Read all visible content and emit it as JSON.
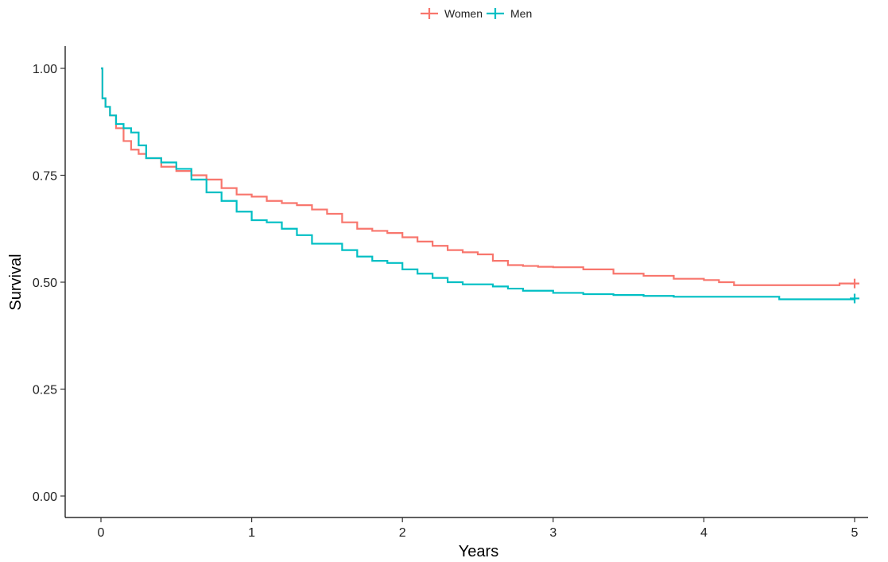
{
  "chart_data": {
    "type": "line",
    "title": "",
    "xlabel": "Years",
    "ylabel": "Survival",
    "xlim": [
      0,
      5
    ],
    "ylim": [
      0,
      1
    ],
    "x_ticks": [
      0,
      1,
      2,
      3,
      4,
      5
    ],
    "x_tick_labels": [
      "0",
      "1",
      "2",
      "3",
      "4",
      "5"
    ],
    "y_ticks": [
      0,
      0.25,
      0.5,
      0.75,
      1
    ],
    "y_tick_labels": [
      "0.00",
      "0.25",
      "0.50",
      "0.75",
      "1.00"
    ],
    "grid": false,
    "legend_position": "top-center",
    "line_shape": "step",
    "censor_marks": true,
    "series": [
      {
        "name": "Women",
        "color": "#F8766D",
        "x": [
          0,
          0.01,
          0.03,
          0.06,
          0.1,
          0.15,
          0.2,
          0.25,
          0.3,
          0.4,
          0.5,
          0.6,
          0.7,
          0.8,
          0.9,
          1.0,
          1.1,
          1.2,
          1.3,
          1.4,
          1.5,
          1.6,
          1.7,
          1.8,
          1.9,
          2.0,
          2.1,
          2.2,
          2.3,
          2.4,
          2.5,
          2.6,
          2.7,
          2.8,
          2.9,
          3.0,
          3.2,
          3.4,
          3.6,
          3.8,
          4.0,
          4.1,
          4.2,
          4.4,
          4.6,
          4.8,
          4.9,
          5.0
        ],
        "y": [
          1.0,
          0.93,
          0.91,
          0.89,
          0.86,
          0.83,
          0.81,
          0.8,
          0.79,
          0.77,
          0.76,
          0.75,
          0.74,
          0.72,
          0.705,
          0.7,
          0.69,
          0.685,
          0.68,
          0.67,
          0.66,
          0.64,
          0.625,
          0.62,
          0.615,
          0.605,
          0.595,
          0.585,
          0.575,
          0.57,
          0.565,
          0.55,
          0.54,
          0.538,
          0.536,
          0.535,
          0.53,
          0.52,
          0.515,
          0.508,
          0.505,
          0.5,
          0.493,
          0.493,
          0.493,
          0.493,
          0.497,
          0.497
        ],
        "censored_x": [
          5.0
        ],
        "censored_y": [
          0.497
        ]
      },
      {
        "name": "Men",
        "color": "#00BFC4",
        "x": [
          0,
          0.01,
          0.03,
          0.06,
          0.1,
          0.15,
          0.2,
          0.25,
          0.3,
          0.4,
          0.5,
          0.6,
          0.7,
          0.8,
          0.9,
          1.0,
          1.1,
          1.2,
          1.3,
          1.4,
          1.5,
          1.6,
          1.7,
          1.8,
          1.9,
          2.0,
          2.1,
          2.2,
          2.3,
          2.4,
          2.5,
          2.6,
          2.7,
          2.8,
          3.0,
          3.2,
          3.4,
          3.6,
          3.8,
          4.0,
          4.2,
          4.4,
          4.5,
          4.6,
          4.8,
          5.0
        ],
        "y": [
          1.0,
          0.93,
          0.91,
          0.89,
          0.87,
          0.86,
          0.85,
          0.82,
          0.79,
          0.78,
          0.765,
          0.74,
          0.71,
          0.69,
          0.665,
          0.645,
          0.64,
          0.625,
          0.61,
          0.59,
          0.59,
          0.575,
          0.56,
          0.55,
          0.545,
          0.53,
          0.52,
          0.51,
          0.5,
          0.495,
          0.495,
          0.49,
          0.485,
          0.48,
          0.475,
          0.472,
          0.47,
          0.468,
          0.466,
          0.466,
          0.466,
          0.466,
          0.46,
          0.46,
          0.46,
          0.462
        ],
        "censored_x": [
          5.0
        ],
        "censored_y": [
          0.462
        ]
      }
    ]
  }
}
